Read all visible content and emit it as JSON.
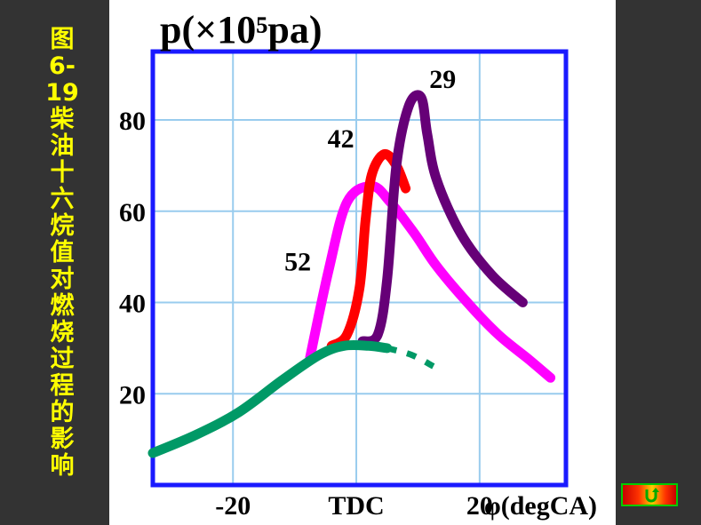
{
  "caption": "图6-19 柴油十六烷值对燃烧过程的影响",
  "nav": {
    "back_icon": "return-arrow-icon"
  },
  "colors": {
    "axis_box": "#1a1aff",
    "grid": "#99ccee",
    "s52": "#ff00ff",
    "s42": "#ff0000",
    "s29": "#660077",
    "motoring": "#009966"
  },
  "chart_data": {
    "type": "line",
    "title": "",
    "ylabel": "p(×10⁵pa)",
    "xlabel": "φ(degCA)",
    "xlim": [
      -33,
      34
    ],
    "ylim": [
      0,
      95
    ],
    "grid": true,
    "yticks": [
      {
        "value": 20,
        "label": "20"
      },
      {
        "value": 40,
        "label": "40"
      },
      {
        "value": 60,
        "label": "60"
      },
      {
        "value": 80,
        "label": "80"
      }
    ],
    "xticks": [
      {
        "value": -20,
        "label": "-20"
      },
      {
        "value": 0,
        "label": "TDC"
      },
      {
        "value": 20,
        "label": "20"
      }
    ],
    "series": [
      {
        "name": "52",
        "color": "#ff00ff",
        "points": [
          [
            -7.5,
            28
          ],
          [
            -4.5,
            47
          ],
          [
            -1.5,
            62
          ],
          [
            2.5,
            65.5
          ],
          [
            5.5,
            62
          ],
          [
            9.5,
            55
          ],
          [
            13,
            48
          ],
          [
            18,
            40
          ],
          [
            23,
            33
          ],
          [
            28,
            27.5
          ],
          [
            31.5,
            23.5
          ]
        ]
      },
      {
        "name": "42",
        "color": "#ff0000",
        "points": [
          [
            -4,
            30.5
          ],
          [
            -1.5,
            33
          ],
          [
            0.5,
            43
          ],
          [
            1.5,
            58
          ],
          [
            2.5,
            68
          ],
          [
            4.5,
            72.5
          ],
          [
            6.5,
            70
          ],
          [
            8,
            65
          ]
        ]
      },
      {
        "name": "29",
        "color": "#660077",
        "points": [
          [
            1,
            31.5
          ],
          [
            3.5,
            33
          ],
          [
            5,
            45
          ],
          [
            6.5,
            70
          ],
          [
            8.5,
            83
          ],
          [
            10.5,
            85
          ],
          [
            11.5,
            77
          ],
          [
            13,
            67
          ],
          [
            17,
            55
          ],
          [
            22,
            46
          ],
          [
            27,
            40
          ]
        ]
      },
      {
        "name": "",
        "color": "#009966",
        "points": [
          [
            -33,
            7
          ],
          [
            -26,
            11
          ],
          [
            -19,
            16
          ],
          [
            -12,
            23
          ],
          [
            -6,
            28.5
          ],
          [
            -2,
            30.5
          ],
          [
            2,
            30.5
          ],
          [
            5,
            30
          ]
        ]
      },
      {
        "name": "",
        "color": "#009966",
        "dashed": true,
        "points": [
          [
            5,
            30
          ],
          [
            9,
            28.5
          ],
          [
            12.5,
            26
          ]
        ]
      }
    ],
    "labels": [
      {
        "text": "52",
        "x": -9.5,
        "y": 47
      },
      {
        "text": "42",
        "x": -2.5,
        "y": 74
      },
      {
        "text": "29",
        "x": 14,
        "y": 87
      }
    ]
  }
}
